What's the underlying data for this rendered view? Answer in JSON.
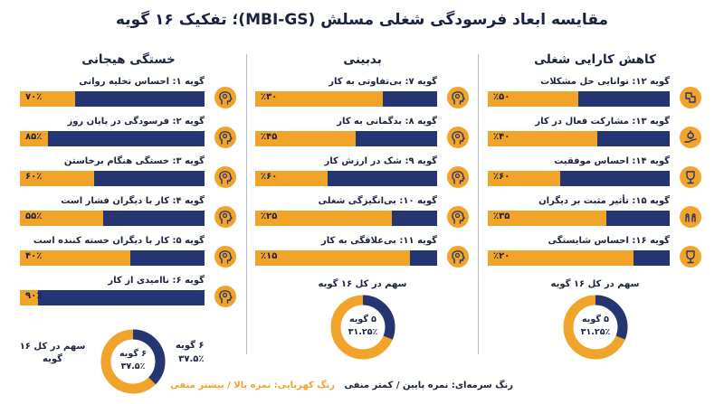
{
  "title": "مقایسه ابعاد فرسودگی شغلی مسلش (MBI-GS)؛ تفکیک ۱۶ گویه",
  "colors": {
    "navy": "#253572",
    "amber": "#f2a329",
    "text": "#1b2140"
  },
  "legend": {
    "amber": "رنگ کهربایی: نمره بالا / بیشتر منفی",
    "navy": "رنگ سرمه‌ای: نمره پایین / کمتر منفی"
  },
  "chart_data": [
    {
      "type": "bar",
      "title": "خستگی هیجانی",
      "categories": [
        "گویه ۱: احساس تخلیه روانی",
        "گویه ۲: فرسودگی در پایان روز",
        "گویه ۳: خستگی هنگام برخاستن",
        "گویه ۴: کار با دیگران فشار است",
        "گویه ۵: کار با دیگران خسته کننده است",
        "گویه ۶: ناامیدی از کار"
      ],
      "value_labels": [
        "۷۰٪",
        "۸۵٪",
        "۶۰٪",
        "۵۵٪",
        "۴۰٪",
        "۹۰٪"
      ],
      "values": [
        70,
        85,
        60,
        55,
        40,
        90
      ],
      "ylim": [
        0,
        100
      ],
      "icons": [
        "head-brain-icon",
        "head-gear-icon",
        "head-lightbulb-icon",
        "head-network-icon",
        "head-puzzle-icon",
        "head-target-icon"
      ],
      "share": {
        "items_label": "۶ گویه",
        "percent_label": "۳۷.۵٪",
        "caption": "سهم در کل ۱۶ گویه",
        "side_items": "۶ گویه",
        "side_percent": "۳۷.۵٪",
        "value": 37.5
      }
    },
    {
      "type": "bar",
      "title": "بدبینی",
      "categories": [
        "گویه ۷: بی‌تفاوتی به کار",
        "گویه ۸: بدگمانی به کار",
        "گویه ۹: شک در ارزش کار",
        "گویه ۱۰: بی‌انگیزگی شغلی",
        "گویه ۱۱: بی‌علاقگی به کار"
      ],
      "value_labels": [
        "٪۳۰",
        "٪۴۵",
        "٪۶۰",
        "٪۲۵",
        "٪۱۵"
      ],
      "values": [
        30,
        45,
        60,
        25,
        15
      ],
      "ylim": [
        0,
        100
      ],
      "icons": [
        "head-neutral-icon",
        "head-question-icon",
        "head-doubt-icon",
        "head-battery-icon",
        "head-sad-icon"
      ],
      "share": {
        "items_label": "۵ گویه",
        "percent_label": "۳۱.۲۵٪",
        "caption": "سهم در کل ۱۶ گویه",
        "value": 31.25
      }
    },
    {
      "type": "bar",
      "title": "کاهش کارایی شغلی",
      "categories": [
        "گویه ۱۲: توانایی حل مشکلات",
        "گویه ۱۳: مشارکت فعال در کار",
        "گویه ۱۴: احساس موفقیت",
        "گویه ۱۵: تأثیر مثبت بر دیگران",
        "گویه ۱۶: احساس شایستگی"
      ],
      "value_labels": [
        "٪۵۰",
        "٪۴۰",
        "٪۶۰",
        "٪۳۵",
        "٪۲۰"
      ],
      "values": [
        50,
        40,
        60,
        35,
        20
      ],
      "ylim": [
        0,
        100
      ],
      "icons": [
        "puzzle-solve-icon",
        "hand-gear-icon",
        "medal-icon",
        "people-group-icon",
        "trophy-icon"
      ],
      "share": {
        "items_label": "۵ گویه",
        "percent_label": "۳۱.۲۵٪",
        "caption": "سهم در کل ۱۶ گویه",
        "value": 31.25
      }
    }
  ]
}
